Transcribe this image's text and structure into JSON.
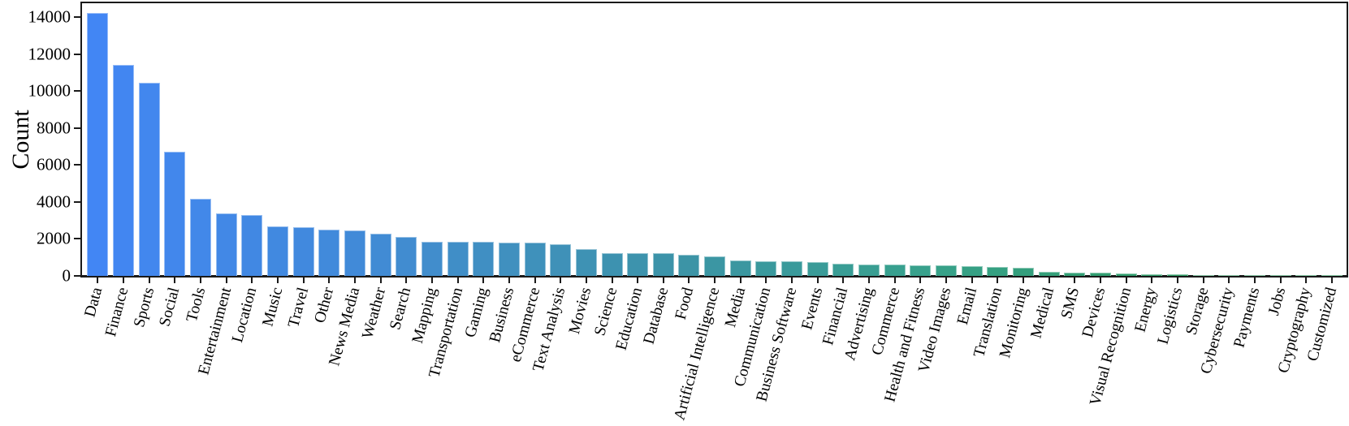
{
  "chart_data": {
    "type": "bar",
    "title": "",
    "xlabel": "",
    "ylabel": "Count",
    "categories": [
      "Data",
      "Finance",
      "Sports",
      "Social",
      "Tools",
      "Entertainment",
      "Location",
      "Music",
      "Travel",
      "Other",
      "News Media",
      "Weather",
      "Search",
      "Mapping",
      "Transportation",
      "Gaming",
      "Business",
      "eCommerce",
      "Text Analysis",
      "Movies",
      "Science",
      "Education",
      "Database",
      "Food",
      "Artificial Intelligence",
      "Media",
      "Communication",
      "Business Software",
      "Events",
      "Financial",
      "Advertising",
      "Commerce",
      "Health and Fitness",
      "Video Images",
      "Email",
      "Translation",
      "Monitoring",
      "Medical",
      "SMS",
      "Devices",
      "Visual Recognition",
      "Energy",
      "Logistics",
      "Storage",
      "Cybersecurity",
      "Payments",
      "Jobs",
      "Cryptography",
      "Customized"
    ],
    "values": [
      14250,
      11400,
      10450,
      6700,
      4170,
      3360,
      3300,
      2680,
      2620,
      2490,
      2450,
      2290,
      2090,
      1860,
      1850,
      1830,
      1810,
      1780,
      1720,
      1460,
      1250,
      1240,
      1230,
      1130,
      1040,
      850,
      800,
      770,
      730,
      660,
      615,
      605,
      580,
      570,
      520,
      470,
      460,
      215,
      175,
      160,
      115,
      105,
      100,
      55,
      30,
      15,
      12,
      10,
      8
    ],
    "yticks": [
      0,
      2000,
      4000,
      6000,
      8000,
      10000,
      12000,
      14000
    ],
    "ylim": [
      0,
      14800
    ],
    "xtick_rotation_deg": 75,
    "grid": false,
    "legend": "none",
    "bar_color_gradient": [
      {
        "i": 0,
        "c": "#4286f4"
      },
      {
        "i": 10,
        "c": "#418ad8"
      },
      {
        "i": 16,
        "c": "#4090bf"
      },
      {
        "i": 22,
        "c": "#3c93a9"
      },
      {
        "i": 32,
        "c": "#38a18c"
      },
      {
        "i": 42,
        "c": "#2f9d66"
      },
      {
        "i": 48,
        "c": "#2b9e5e"
      }
    ],
    "axis_color": "#1a1a1a"
  }
}
